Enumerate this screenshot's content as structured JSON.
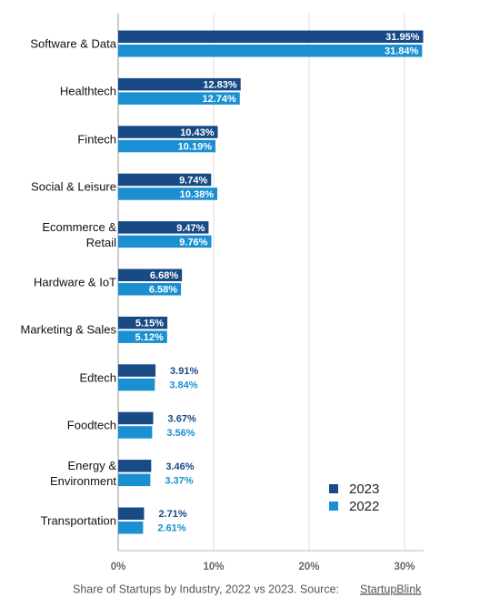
{
  "chart_data": {
    "type": "barh",
    "caption": "Share of Startups by Industry, 2022 vs 2023. Source:",
    "source": "StartupBlink",
    "categories": [
      "Software & Data",
      "Healthtech",
      "Fintech",
      "Social & Leisure",
      "Ecommerce &\nRetail",
      "Hardware & IoT",
      "Marketing & Sales",
      "Edtech",
      "Foodtech",
      "Energy &\nEnvironment",
      "Transportation"
    ],
    "series": [
      {
        "name": "2023",
        "color": "#184a86",
        "values": [
          31.95,
          12.83,
          10.43,
          9.74,
          9.47,
          6.68,
          5.15,
          3.91,
          3.67,
          3.46,
          2.71
        ],
        "value_labels": [
          "31.95%",
          "12.83%",
          "10.43%",
          "9.74%",
          "9.47%",
          "6.68%",
          "5.15%",
          "3.91%",
          "3.67%",
          "3.46%",
          "2.71%"
        ]
      },
      {
        "name": "2022",
        "color": "#1a8fd1",
        "values": [
          31.84,
          12.74,
          10.19,
          10.38,
          9.76,
          6.58,
          5.12,
          3.84,
          3.56,
          3.37,
          2.61
        ],
        "value_labels": [
          "31.84%",
          "12.74%",
          "10.19%",
          "10.38%",
          "9.76%",
          "6.58%",
          "5.12%",
          "3.84%",
          "3.56%",
          "3.37%",
          "2.61%"
        ]
      }
    ],
    "xlim": [
      0,
      32
    ],
    "xticks": [
      {
        "value": 0,
        "label": "0%"
      },
      {
        "value": 10,
        "label": "10%"
      },
      {
        "value": 20,
        "label": "20%"
      },
      {
        "value": 30,
        "label": "30%"
      }
    ],
    "grid": true,
    "legend": "lower right"
  }
}
